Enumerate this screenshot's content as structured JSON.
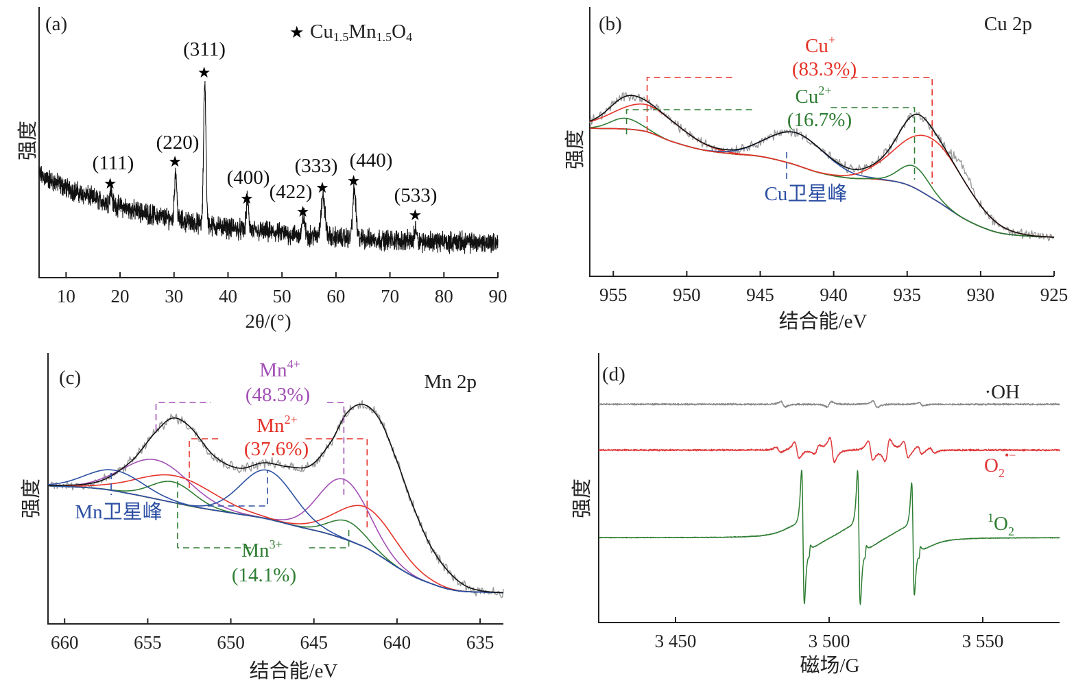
{
  "chart_data": [
    {
      "type": "line",
      "panel_label": "(a)",
      "xlabel": "2θ/(°)",
      "ylabel": "强度",
      "xlim": [
        5,
        90
      ],
      "xticks": [
        "10",
        "20",
        "30",
        "40",
        "50",
        "60",
        "70",
        "80",
        "90"
      ],
      "yticks": "none",
      "grid": false,
      "legend": {
        "symbol": "star",
        "text_main": [
          "Cu",
          "Mn",
          "O"
        ],
        "text_sub": [
          "1.5",
          "1.5",
          "4"
        ],
        "placement": "top-right"
      },
      "series": [
        {
          "color": "#111111",
          "style": "noisy XRD pattern"
        }
      ],
      "peaks": [
        {
          "hkl": "(111)",
          "two_theta": 18.3,
          "rel_intensity": 5
        },
        {
          "hkl": "(220)",
          "two_theta": 30.3,
          "rel_intensity": 18
        },
        {
          "hkl": "(311)",
          "two_theta": 35.7,
          "rel_intensity": 53
        },
        {
          "hkl": "(400)",
          "two_theta": 43.6,
          "rel_intensity": 11
        },
        {
          "hkl": "(422)",
          "two_theta": 54.0,
          "rel_intensity": 7
        },
        {
          "hkl": "(333)",
          "two_theta": 57.6,
          "rel_intensity": 14
        },
        {
          "hkl": "(440)",
          "two_theta": 63.4,
          "rel_intensity": 18
        },
        {
          "hkl": "(533)",
          "two_theta": 74.8,
          "rel_intensity": 5
        }
      ]
    },
    {
      "type": "line",
      "panel_label": "(b)",
      "title": "Cu 2p",
      "xlabel": "结合能/eV",
      "ylabel": "强度",
      "xlim": [
        956.6,
        925
      ],
      "x_reversed": true,
      "xticks": [
        "955",
        "950",
        "945",
        "940",
        "935",
        "930",
        "925"
      ],
      "yticks": "none",
      "grid": false,
      "background": [
        [
          956.6,
          55
        ],
        [
          953,
          54
        ],
        [
          951,
          50
        ],
        [
          949,
          47
        ],
        [
          947,
          45.5
        ],
        [
          945,
          44.5
        ],
        [
          943,
          42
        ],
        [
          941,
          38.5
        ],
        [
          939,
          36.5
        ],
        [
          937,
          36
        ],
        [
          935,
          34
        ],
        [
          933,
          28
        ],
        [
          931,
          21
        ],
        [
          929,
          16.5
        ],
        [
          927,
          15
        ],
        [
          925,
          14.5
        ]
      ],
      "components": [
        {
          "species": "Cu2+",
          "center": 954.2,
          "height": 4,
          "sigma": 1.0,
          "color": "#2e7d32"
        },
        {
          "species": "Cu+",
          "center": 952.7,
          "height": 10,
          "sigma": 2.3,
          "color": "#e53228"
        },
        {
          "species": "Cu satellite",
          "center": 942.5,
          "height": 12,
          "sigma": 2.0,
          "color": "#2c4fa3"
        },
        {
          "species": "Cu2+",
          "center": 934.5,
          "height": 8,
          "sigma": 1.0,
          "color": "#2e7d32"
        },
        {
          "species": "Cu+",
          "center": 933.3,
          "height": 22,
          "sigma": 2.3,
          "color": "#e53228"
        }
      ],
      "annotations": [
        {
          "base": "Cu",
          "sup": "+",
          "pct": "(83.3%)",
          "color": "#e53228"
        },
        {
          "base": "Cu",
          "sup": "2+",
          "pct": "(16.7%)",
          "color": "#2e7d32"
        },
        {
          "text": "Cu卫星峰",
          "color": "#2c4fa3"
        }
      ]
    },
    {
      "type": "line",
      "panel_label": "(c)",
      "title": "Mn 2p",
      "xlabel": "结合能/eV",
      "ylabel": "强度",
      "xlim": [
        661,
        633.6
      ],
      "x_reversed": true,
      "xticks": [
        "660",
        "655",
        "650",
        "645",
        "640",
        "635"
      ],
      "yticks": "none",
      "grid": false,
      "background": [
        [
          661,
          51
        ],
        [
          658,
          50
        ],
        [
          656,
          48
        ],
        [
          654,
          45.5
        ],
        [
          652,
          43
        ],
        [
          650,
          41
        ],
        [
          648,
          39
        ],
        [
          646,
          36
        ],
        [
          644,
          33
        ],
        [
          642,
          28.5
        ],
        [
          641,
          25
        ],
        [
          640,
          21
        ],
        [
          639,
          17.5
        ],
        [
          638,
          15
        ],
        [
          637,
          13
        ],
        [
          636,
          12
        ],
        [
          634,
          11.6
        ],
        [
          633.6,
          11.5
        ]
      ],
      "envelope": [
        [
          661,
          51
        ],
        [
          658,
          52.5
        ],
        [
          656,
          60
        ],
        [
          654.5,
          71
        ],
        [
          653.5,
          76
        ],
        [
          652.5,
          73
        ],
        [
          651,
          62
        ],
        [
          649.5,
          57.5
        ],
        [
          648,
          59.5
        ],
        [
          646.5,
          58
        ],
        [
          645.2,
          58.5
        ],
        [
          644,
          67
        ],
        [
          643,
          78
        ],
        [
          642,
          81
        ],
        [
          641,
          75
        ],
        [
          640,
          60
        ],
        [
          639,
          43
        ],
        [
          638,
          29
        ],
        [
          637,
          20
        ],
        [
          636,
          14.5
        ],
        [
          635,
          12.3
        ],
        [
          633.6,
          11.5
        ]
      ],
      "components": [
        {
          "species": "Mn4+",
          "center": 654.5,
          "height": 14.4,
          "sigma": 2.0,
          "color": "#a24fb5"
        },
        {
          "species": "Mn4+",
          "center": 643.2,
          "height": 22,
          "sigma": 1.5,
          "color": "#a24fb5"
        },
        {
          "species": "Mn2+",
          "center": 653.3,
          "height": 10,
          "sigma": 2.3,
          "color": "#e53228"
        },
        {
          "species": "Mn2+",
          "center": 641.8,
          "height": 15,
          "sigma": 1.8,
          "color": "#e53228"
        },
        {
          "species": "Mn3+",
          "center": 653.5,
          "height": 7.6,
          "sigma": 1.3,
          "color": "#2e7d32"
        },
        {
          "species": "Mn3+",
          "center": 643.0,
          "height": 7,
          "sigma": 1.1,
          "color": "#2e7d32"
        },
        {
          "species": "Mn satellite",
          "center": 657.0,
          "height": 7.6,
          "sigma": 1.7,
          "color": "#2c4fa3"
        },
        {
          "species": "Mn satellite",
          "center": 647.8,
          "height": 18,
          "sigma": 1.6,
          "color": "#2c4fa3"
        }
      ],
      "annotations": [
        {
          "base": "Mn",
          "sup": "4+",
          "pct": "(48.3%)",
          "color": "#a24fb5"
        },
        {
          "base": "Mn",
          "sup": "2+",
          "pct": "(37.6%)",
          "color": "#e53228"
        },
        {
          "base": "Mn",
          "sup": "3+",
          "pct": "(14.1%)",
          "color": "#2e7d32"
        },
        {
          "text": "Mn卫星峰",
          "color": "#2c4fa3"
        }
      ]
    },
    {
      "type": "line",
      "panel_label": "(d)",
      "xlabel": "磁场/G",
      "ylabel": "强度",
      "xlim": [
        3425,
        3575
      ],
      "xticks": [
        "3 450",
        "3 500",
        "3 550"
      ],
      "yticks": "none",
      "grid": false,
      "series": [
        {
          "name": "·OH",
          "color": "#8a8a8a",
          "line_centers_G": [
            3485,
            3500,
            3515,
            3530
          ],
          "amplitude": 1
        },
        {
          "name_base": "O",
          "name_sub": "2",
          "name_sup": "•−",
          "color": "#e0393b",
          "line_centers_G": [
            3483.5,
            3489.5,
            3496,
            3501,
            3513.5,
            3519,
            3525,
            3529.5,
            3533.5
          ],
          "amplitude": 4
        },
        {
          "name_sup": "1",
          "name_base": "O",
          "name_sub": "2",
          "color": "#2e7d32",
          "line_centers_G": [
            3491.5,
            3509.7,
            3527.3
          ],
          "amplitude": 24
        }
      ]
    }
  ]
}
